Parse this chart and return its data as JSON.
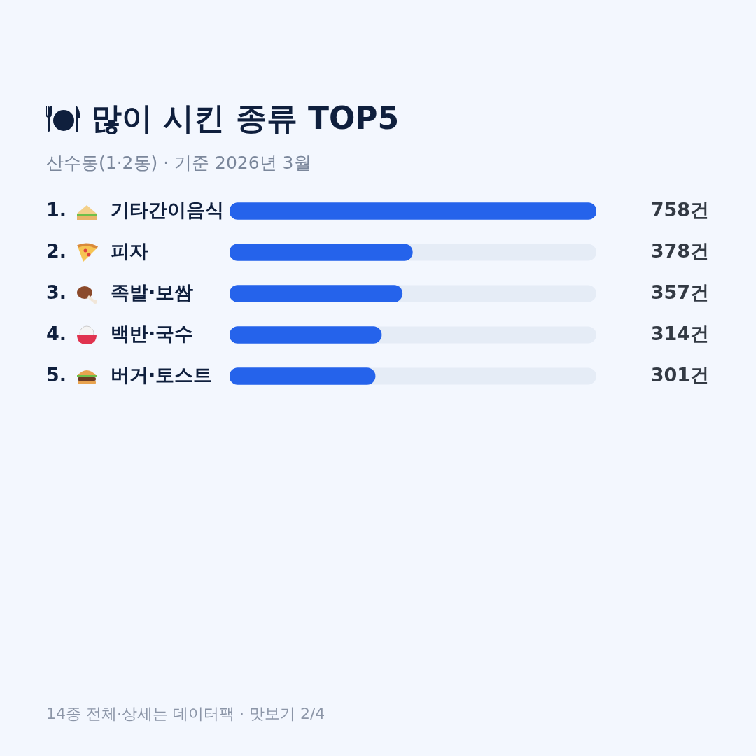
{
  "chart_data": {
    "type": "bar",
    "orientation": "horizontal",
    "title": "많이 시킨 종류 TOP5",
    "subtitle": "산수동(1·2동) · 기준 2026년 3월",
    "categories": [
      "1. 기타간이음식",
      "2. 피자",
      "3. 족발·보쌈",
      "4. 백반·국수",
      "5. 버거·토스트"
    ],
    "values": [
      758,
      378,
      357,
      314,
      301
    ],
    "value_labels": [
      "758건",
      "378건",
      "357건",
      "314건",
      "301건"
    ],
    "color": "#2563eb",
    "annotations": [
      "14종 전체·상세는 데이터팩 · 맛보기 2/4"
    ]
  }
}
